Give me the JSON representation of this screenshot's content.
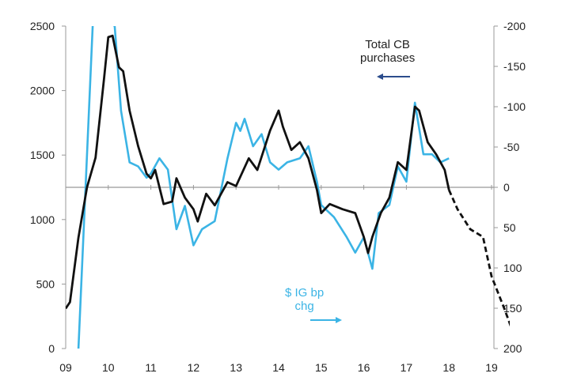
{
  "chart_data": {
    "type": "line",
    "title": "",
    "xlabel": "",
    "x_ticks": [
      "09",
      "10",
      "11",
      "12",
      "13",
      "14",
      "15",
      "16",
      "17",
      "18",
      "19"
    ],
    "x_range": [
      2009,
      2019.3
    ],
    "left_axis": {
      "range": [
        0,
        2500
      ],
      "ticks": [
        "0",
        "500",
        "1000",
        "1500",
        "2000",
        "2500"
      ]
    },
    "right_axis": {
      "range": [
        200,
        -200
      ],
      "inverted": true,
      "ticks": [
        "-200",
        "-150",
        "-100",
        "-50",
        "0",
        "50",
        "100",
        "150",
        "200"
      ]
    },
    "zero_line": 0,
    "series": [
      {
        "name": "Total CB purchases",
        "axis": "left",
        "color": "#111111",
        "x": [
          2009.0,
          2009.1,
          2009.3,
          2009.5,
          2009.7,
          2009.9,
          2010.0,
          2010.1,
          2010.25,
          2010.35,
          2010.5,
          2010.7,
          2010.9,
          2011.0,
          2011.1,
          2011.3,
          2011.5,
          2011.6,
          2011.8,
          2012.0,
          2012.1,
          2012.3,
          2012.5,
          2012.8,
          2013.0,
          2013.3,
          2013.5,
          2013.8,
          2014.0,
          2014.1,
          2014.3,
          2014.5,
          2014.7,
          2014.9,
          2015.0,
          2015.2,
          2015.5,
          2015.8,
          2016.0,
          2016.1,
          2016.2,
          2016.4,
          2016.6,
          2016.8,
          2017.0,
          2017.2,
          2017.3,
          2017.5,
          2017.7,
          2017.9,
          2018.0
        ],
        "values": [
          310,
          360,
          860,
          1250,
          1480,
          2090,
          2414,
          2425,
          2180,
          2150,
          1845,
          1570,
          1355,
          1320,
          1385,
          1120,
          1140,
          1320,
          1170,
          1080,
          985,
          1200,
          1110,
          1290,
          1260,
          1475,
          1385,
          1690,
          1845,
          1720,
          1540,
          1600,
          1475,
          1230,
          1050,
          1120,
          1080,
          1050,
          865,
          740,
          865,
          1050,
          1170,
          1445,
          1385,
          1875,
          1845,
          1600,
          1505,
          1385,
          1230
        ]
      },
      {
        "name": "Total CB purchases (projection)",
        "axis": "left",
        "color": "#111111",
        "dashed": true,
        "x": [
          2018.0,
          2018.2,
          2018.5,
          2018.8,
          2019.0,
          2019.3,
          2019.5
        ],
        "values": [
          1230,
          1080,
          925,
          865,
          560,
          310,
          130
        ]
      },
      {
        "name": "$ IG bp chg",
        "axis": "right",
        "color": "#3bb4e5",
        "x": [
          2009.3,
          2009.65,
          2010.15,
          2010.3,
          2010.5,
          2010.7,
          2010.9,
          2011.0,
          2011.2,
          2011.4,
          2011.6,
          2011.8,
          2012.0,
          2012.2,
          2012.5,
          2012.8,
          2013.0,
          2013.1,
          2013.2,
          2013.4,
          2013.6,
          2013.8,
          2014.0,
          2014.2,
          2014.5,
          2014.7,
          2014.9,
          2015.0,
          2015.3,
          2015.6,
          2015.8,
          2016.0,
          2016.2,
          2016.35,
          2016.6,
          2016.8,
          2017.0,
          2017.2,
          2017.4,
          2017.6,
          2017.8,
          2018.0
        ],
        "values": [
          200,
          -220,
          -200,
          -95,
          -31,
          -26,
          -12,
          -17,
          -36,
          -22,
          52,
          23,
          72,
          52,
          42,
          -36,
          -80,
          -70,
          -85,
          -51,
          -66,
          -31,
          -22,
          -31,
          -36,
          -51,
          -7,
          22,
          37,
          62,
          81,
          62,
          101,
          32,
          22,
          -26,
          -7,
          -105,
          -41,
          -41,
          -31,
          -36
        ]
      }
    ],
    "annotations": [
      {
        "text_line1": "Total CB",
        "text_line2": "purchases",
        "arrow": "left",
        "color": "#2b4c8c"
      },
      {
        "text_line1": "$ IG bp",
        "text_line2": "chg",
        "arrow": "right",
        "color": "#3bb4e5"
      }
    ]
  }
}
